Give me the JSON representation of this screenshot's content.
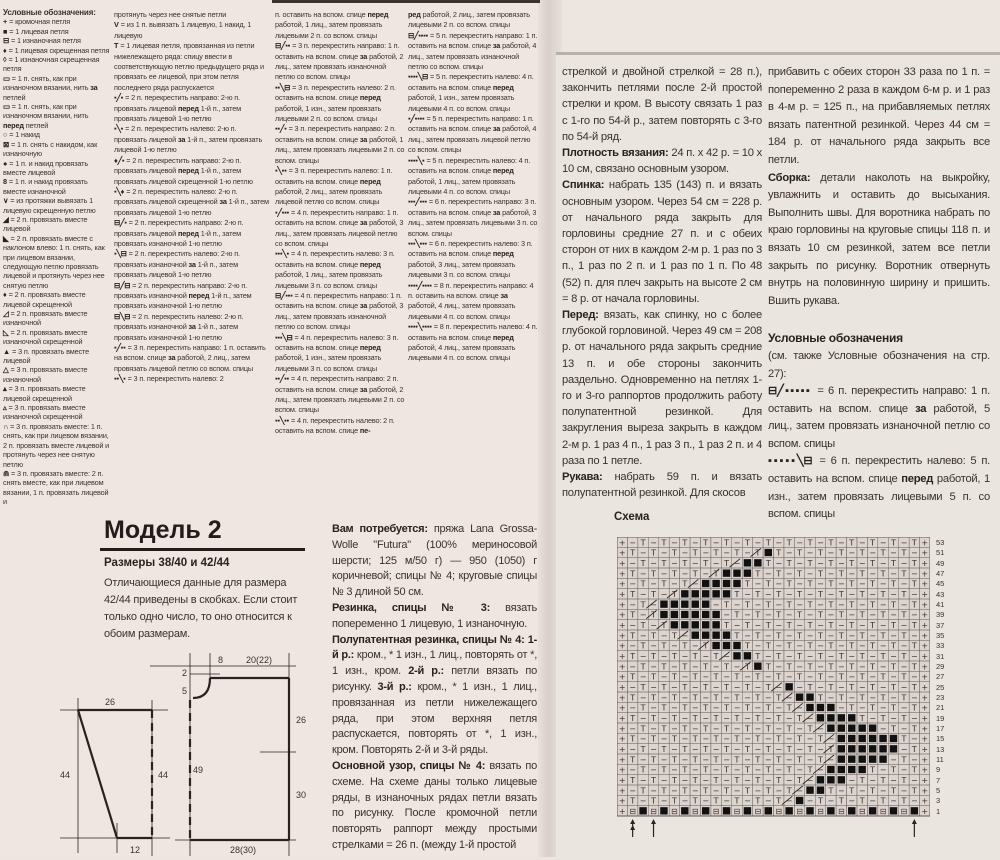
{
  "legend": {
    "title": "Условные обозначения:",
    "columns": [
      [
        {
          "sym": "+",
          "t": [
            "= кромочная петля"
          ]
        },
        {
          "sym": "■",
          "t": [
            "= 1 лицевая петля"
          ]
        },
        {
          "sym": "⊟",
          "t": [
            "= 1 изнаночная петля"
          ]
        },
        {
          "sym": "♦",
          "t": [
            "= 1 лицевая скрещенная петля"
          ]
        },
        {
          "sym": "◊",
          "t": [
            "= 1 изнаночная скрещенная петля"
          ]
        },
        {
          "sym": "▭",
          "t": [
            "= 1 п. снять, как при изнаночном вязании, нить ",
            "за",
            " петлей"
          ]
        },
        {
          "sym": "▭",
          "t": [
            "= 1 п. снять, как при изнаночном вязании, нить ",
            "перед",
            " петлей"
          ]
        },
        {
          "sym": "○",
          "t": [
            "= 1 накид"
          ]
        },
        {
          "sym": "⊠",
          "t": [
            "= 1 п. снять с накидом, как изнаночную"
          ]
        },
        {
          "sym": "●",
          "t": [
            "= 1 п. и накид провязать вместе лицевой"
          ]
        },
        {
          "sym": "8",
          "t": [
            "= 1 п. и накид провязать вместе изнаночной"
          ]
        },
        {
          "sym": "∨",
          "t": [
            "= из протяжки вывязать 1 лицевую скрещенную петлю"
          ]
        },
        {
          "sym": "◢",
          "t": [
            "= 2 п. провязать вместе лицевой"
          ]
        },
        {
          "sym": "◣",
          "t": [
            "= 2 п. провязать вместе с наклоном влево: 1 п. снять, как при лицевом вязании, следующую петлю провязать лицевой и протянуть через нее снятую петлю"
          ]
        },
        {
          "sym": "♦",
          "t": [
            "= 2 п. провязать вместе лицевой скрещенной"
          ]
        },
        {
          "sym": "◿",
          "t": [
            "= 2 п. провязать вместе изнаночной"
          ]
        },
        {
          "sym": "◺",
          "t": [
            "= 2 п. провязать вместе изнаночной скрещенной"
          ]
        },
        {
          "sym": "▲",
          "t": [
            "= 3 п. провязать вместе лицевой"
          ]
        },
        {
          "sym": "△",
          "t": [
            "= 3 п. провязать вместе изнаночной"
          ]
        },
        {
          "sym": "▴",
          "t": [
            "= 3 п. провязать вместе лицевой скрещенной"
          ]
        },
        {
          "sym": "▵",
          "t": [
            "= 3 п. провязать вместе изнаночной скрещенной"
          ]
        },
        {
          "sym": "∩",
          "t": [
            "= 3 п. провязать вместе: 1 п. снять, как при лицевом вязании, 2 п. провязать вместе лицевой и протянуть через нее снятую петлю"
          ]
        },
        {
          "sym": "⋒",
          "t": [
            "= 3 п. провязать вместе: 2 п. снять вместе, как при лицевом вязании, 1 п. провязать лицевой и"
          ]
        }
      ],
      [
        {
          "sym": "",
          "t": [
            "протянуть через нее снятые петли"
          ]
        },
        {
          "sym": "V",
          "t": [
            "= из 1 п. вывязать 1 лицевую, 1 накид, 1 лицевую"
          ]
        },
        {
          "sym": "T",
          "t": [
            "= 1 лицевая петля, провязанная из петли нижележащего ряда: спицу ввести в соответствующую петлю предыдущего ряда и провязать ее лицевой, при этом петля последнего ряда распускается"
          ]
        },
        {
          "sym": "▪╱▪",
          "t": [
            "= 2 п. перекрестить направо: 2-ю п. провязать лицевой ",
            "перед",
            " 1-й п., затем провязать лицевой 1-ю петлю"
          ]
        },
        {
          "sym": "▪╲▪",
          "t": [
            "= 2 п. перекрестить налево: 2-ю п. провязать лицевой ",
            "за",
            " 1-й п., затем провязать лицевой 1-ю петлю"
          ]
        },
        {
          "sym": "♦╱▪",
          "t": [
            "= 2 п. перекрестить направо: 2-ю п. провязать лицевой ",
            "перед",
            " 1-й п., затем провязать лицевой скрещенной 1-ю петлю"
          ]
        },
        {
          "sym": "▪╲♦",
          "t": [
            "= 2 п. перекрестить налево: 2-ю п. провязать лицевой скрещенной ",
            "за",
            " 1-й п., затем провязать лицевой 1-ю петлю"
          ]
        },
        {
          "sym": "⊟╱▪",
          "t": [
            "= 2 п. перекрестить направо: 2-ю п. провязать лицевой ",
            "перед",
            " 1-й п., затем провязать изнаночной 1-ю петлю"
          ]
        },
        {
          "sym": "▪╲⊟",
          "t": [
            "= 2 п. перекрестить налево: 2-ю п. провязать изнаночной ",
            "за",
            " 1-й п., затем провязать лицевой 1-ю петлю"
          ]
        },
        {
          "sym": "⊟╱⊟",
          "t": [
            "= 2 п. перекрестить направо: 2-ю п. провязать изнаночной ",
            "перед",
            " 1-й п., затем провязать изнаночной 1-ю петлю"
          ]
        },
        {
          "sym": "⊟╲⊟",
          "t": [
            "= 2 п. перекрестить налево: 2-ю п. провязать изнаночной ",
            "за",
            " 1-й п., затем провязать изнаночной 1-ю петлю"
          ]
        },
        {
          "sym": "▪╱▪▪",
          "t": [
            "= 3 п. перекрестить направо: 1 п. оставить на вспом. спице ",
            "за",
            " работой, 2 лиц., затем провязать лицевой петлю со вспом. спицы"
          ]
        },
        {
          "sym": "▪▪╲▪",
          "t": [
            "= 3 п. перекрестить налево: 2"
          ]
        }
      ],
      [
        {
          "sym": "",
          "t": [
            "п. оставить на вспом. спице ",
            "перед",
            " работой, 1 лиц., затем провязать лицевыми 2 п. со вспом. спицы"
          ]
        },
        {
          "sym": "⊟╱▪▪",
          "t": [
            "= 3 п. перекрестить направо: 1 п. оставить на вспом. спице ",
            "за",
            " работой, 2 лиц., затем провязать изнаночной петлю со вспом. спицы"
          ]
        },
        {
          "sym": "▪▪╲⊟",
          "t": [
            "= 3 п. перекрестить налево: 2 п. оставить на вспом. спице ",
            "перед",
            " работой, 1 изн., затем провязать лицевыми 2 п. со вспом. спицы"
          ]
        },
        {
          "sym": "▪▪╱▪",
          "t": [
            "= 3 п. перекрестить направо: 2 п. оставить на вспом. спице ",
            "за",
            " работой, 1 лиц., затем провязать лицевыми 2 п. со вспом. спицы"
          ]
        },
        {
          "sym": "▪╲▪▪",
          "t": [
            "= 3 п. перекрестить налево: 1 п. оставить на вспом. спице ",
            "перед",
            " работой, 2 лиц., затем провязать лицевой петлю со вспом. спицы"
          ]
        },
        {
          "sym": "▪╱▪▪▪",
          "t": [
            "= 4 п. перекрестить направо: 1 п. оставить на вспом. спице ",
            "за",
            " работой, 3 лиц., затем провязать лицевой петлю со вспом. спицы"
          ]
        },
        {
          "sym": "▪▪▪╲▪",
          "t": [
            "= 4 п. перекрестить налево: 3 п. оставить на вспом. спице ",
            "перед",
            " работой, 1 лиц., затем провязать лицевыми 3 п. со вспом. спицы"
          ]
        },
        {
          "sym": "⊟╱▪▪▪",
          "t": [
            "= 4 п. перекрестить направо: 1 п. оставить на вспом. спице ",
            "за",
            " работой, 3 лиц., затем провязать изнаночной петлю со вспом. спицы"
          ]
        },
        {
          "sym": "▪▪▪╲⊟",
          "t": [
            "= 4 п. перекрестить налево: 3 п. оставить на вспом. спице ",
            "перед",
            " работой, 1 изн., затем провязать лицевыми 3 п. со вспом. спицы"
          ]
        },
        {
          "sym": "▪▪╱▪▪",
          "t": [
            "= 4 п. перекрестить направо: 2 п. оставить на вспом. спице ",
            "за",
            " работой, 2 лиц., затем провязать лицевыми 2 п. со вспом. спицы"
          ]
        },
        {
          "sym": "▪▪╲▪▪",
          "t": [
            "= 4 п. перекрестить налево: 2 п. оставить на вспом. спице ",
            "пе-"
          ]
        }
      ],
      [
        {
          "sym": "",
          "t": [
            "",
            "ред",
            " работой, 2 лиц., затем провязать лицевыми 2 п. со вспом. спицы"
          ]
        },
        {
          "sym": "⊟╱▪▪▪▪",
          "t": [
            "= 5 п. перекрестить направо: 1 п. оставить на вспом. спице ",
            "за",
            " работой, 4 лиц., затем провязать изнаночной петлю со вспом. спицы"
          ]
        },
        {
          "sym": "▪▪▪▪╲⊟",
          "t": [
            "= 5 п. перекрестить налево: 4 п. оставить на вспом. спице ",
            "перед",
            " работой, 1 изн., затем провязать лицевыми 4 п. со вспом. спицы"
          ]
        },
        {
          "sym": "▪╱▪▪▪▪",
          "t": [
            "= 5 п. перекрестить направо: 1 п. оставить на вспом. спице ",
            "за",
            " работой, 4 лиц., затем провязать лицевой петлю со вспом. спицы"
          ]
        },
        {
          "sym": "▪▪▪▪╲▪",
          "t": [
            "= 5 п. перекрестить налево: 4 п. оставить на вспом. спице ",
            "перед",
            " работой, 1 лиц., затем провязать лицевыми 4 п. со вспом. спицы"
          ]
        },
        {
          "sym": "▪▪▪╱▪▪▪",
          "t": [
            "= 6 п. перекрестить направо: 3 п. оставить на вспом. спице ",
            "за",
            " работой, 3 лиц., затем провязать лицевыми 3 п. со вспом. спицы"
          ]
        },
        {
          "sym": "▪▪▪╲▪▪▪",
          "t": [
            "= 6 п. перекрестить налево: 3 п. оставить на вспом. спице ",
            "перед",
            " работой, 3 лиц., затем провязать лицевыми 3 п. со вспом. спицы"
          ]
        },
        {
          "sym": "▪▪▪▪╱▪▪▪▪",
          "t": [
            "= 8 п. перекрестить направо: 4 п. оставить на вспом. спице ",
            "за",
            " работой, 4 лиц., затем провязать лицевыми 4 п. со вспом. спицы"
          ]
        },
        {
          "sym": "▪▪▪▪╲▪▪▪▪",
          "t": [
            "= 8 п. перекрестить налево: 4 п. оставить на вспом. спице ",
            "перед",
            " работой, 4 лиц., затем провязать лицевыми 4 п. со вспом. спицы"
          ]
        }
      ]
    ]
  },
  "model": {
    "title": "Модель 2",
    "sizes": "Размеры 38/40 и 42/44",
    "sizes_note": "Отличающиеся данные для размера 42/44 приведены в скобках. Если стоит только одно число, то оно относится к обоим размерам."
  },
  "instructions_mid": [
    {
      "t": [
        "",
        "Вам потребуется:",
        " пряжа Lana Grossa-Wolle \"Futura\" (100% мериносовой шерсти; 125 м/50 г) — 950 (1050) г коричневой; спицы № 4; круговые спицы № 3 длиной 50 см."
      ]
    },
    {
      "t": [
        "",
        "Резинка, спицы № 3:",
        " вязать попеременно 1 лицевую, 1 изнаночную."
      ]
    },
    {
      "t": [
        "",
        "Полупатентная резинка, спицы № 4: 1-й р.:",
        " кром., * 1 изн., 1 лиц., повторять от *, 1 изн., кром. ",
        "2-й р.:",
        " петли вязать по рисунку. ",
        "3-й р.:",
        " кром., * 1 изн., 1 лиц., провязанная из петли нижележащего ряда, при этом верхняя петля распускается, повторять от *, 1 изн., кром. Повторять 2-й и 3-й ряды."
      ]
    },
    {
      "t": [
        "",
        "Основной узор, спицы № 4:",
        " вязать по схеме. На схеме даны только лицевые ряды, в изнаночных рядах петли вязать по рисунку. После кромочной петли повторять раппорт между простыми стрелками = 26 п. (между 1-й простой"
      ]
    }
  ],
  "instructions_right_a": [
    {
      "t": [
        "стрелкой и двойной стрелкой = 28 п.), закончить петлями после 2-й простой стрелки и кром. В высоту связать 1 раз с 1-го по 54-й р., затем повторять с 3-го по 54-й ряд."
      ]
    },
    {
      "t": [
        "",
        "Плотность вязания:",
        " 24 п. х 42 р. = 10 х 10 см, связано основным узором."
      ]
    },
    {
      "t": [
        "",
        "Спинка:",
        " набрать 135 (143) п. и вязать основным узором. Через 54 см = 228 р. от начального ряда закрыть для горловины средние 27 п. и с обеих сторон от них в каждом 2-м р. 1 раз по 3 п., 1 раз по 2 п. и 1 раз по 1 п. По 48 (52) п. для плеч закрыть на высоте 2 см = 8 р. от начала горловины."
      ]
    },
    {
      "t": [
        "",
        "Перед:",
        " вязать, как спинку, но с более глубокой горловиной. Через 49 см = 208 р. от начального ряда закрыть средние 13 п. и обе стороны закончить раздельно. Одновременно на петлях 1-го и 3-го раппортов продолжить работу полупатентной резинкой. Для закругления выреза закрыть в каждом 2-м р. 1 раз 4 п., 1 раз 3 п., 1 раз 2 п. и 4 раза по 1 петле."
      ]
    },
    {
      "t": [
        "",
        "Рукава:",
        " набрать 59 п. и вязать полупатентной резинкой. Для скосов"
      ]
    }
  ],
  "instructions_right_b": [
    {
      "t": [
        "прибавить с обеих сторон 33 раза по 1 п. = попеременно 2 раза в каждом 6-м р. и 1 раз в 4-м р. = 125 п., на прибавляемых петлях вязать патентной резинкой. Через 44 см = 184 р. от начального ряда закрыть все петли."
      ]
    },
    {
      "t": [
        "",
        "Сборка:",
        " детали наколоть на выкройку, увлажнить и оставить до высыхания. Выполнить швы. Для воротника набрать по краю горловины на круговые спицы 118 п. и вязать 10 см резинкой, затем все петли закрыть по рисунку. Воротник отвернуть внутрь на половинную ширину и пришить. Вшить рукава."
      ]
    }
  ],
  "legend_right": {
    "title": "Условные обозначения",
    "note": "(см. также Условные обозначения на стр. 27):",
    "entries": [
      {
        "sym": "⊟╱▪▪▪▪▪",
        "t": [
          " = 6 п. перекрестить направо: 1 п. оставить на вспом. спице ",
          "за",
          " работой, 5 лиц., затем провязать изнаночной петлю со вспом. спицы"
        ]
      },
      {
        "sym": "▪▪▪▪▪╲⊟",
        "t": [
          " = 6 п. перекрестить налево: 5 п. оставить на вспом. спице ",
          "перед",
          " работой, 1 изн., затем провязать лицевыми 5 п. со вспом. спицы"
        ]
      }
    ]
  },
  "schema": {
    "title": "Схема",
    "columns": 30,
    "row_labels": [
      "53",
      "51",
      "49",
      "47",
      "45",
      "43",
      "41",
      "39",
      "37",
      "35",
      "33",
      "31",
      "29",
      "27",
      "25",
      "23",
      "21",
      "19",
      "17",
      "15",
      "13",
      "11",
      "9",
      "7",
      "5",
      "3",
      "1"
    ],
    "filled_cells": {
      "51": [
        14,
        14
      ],
      "49": [
        12,
        13
      ],
      "47": [
        10,
        12
      ],
      "45": [
        8,
        11
      ],
      "43": [
        6,
        10
      ],
      "41": [
        4,
        8
      ],
      "39": [
        4,
        9
      ],
      "37": [
        5,
        9
      ],
      "35": [
        7,
        10
      ],
      "33": [
        9,
        11
      ],
      "31": [
        11,
        12
      ],
      "29": [
        13,
        13
      ],
      "25": [
        16,
        16
      ],
      "23": [
        17,
        18
      ],
      "21": [
        18,
        20
      ],
      "19": [
        19,
        22
      ],
      "17": [
        20,
        24
      ],
      "15": [
        21,
        26
      ],
      "13": [
        21,
        26
      ],
      "11": [
        21,
        25
      ],
      "9": [
        20,
        23
      ],
      "7": [
        19,
        21
      ],
      "5": [
        18,
        19
      ],
      "3": [
        17,
        17
      ]
    },
    "row1_filled": "every second stitch",
    "arrows": [
      "double-arrow",
      "arrow",
      "arrow"
    ]
  },
  "diagrams": {
    "sleeve": {
      "top": "26",
      "left": "44",
      "right": "44",
      "bottom": "12"
    },
    "body": {
      "neck_width": "8",
      "shoulder": "20(22)",
      "back_neck": "2",
      "front_neck": "5",
      "upper": "26",
      "front_height": "49",
      "lower": "30",
      "bottom": "28(30)"
    }
  },
  "colors": {
    "paper": "#ece5e0",
    "ink": "#3b302c",
    "chart_fill": "#111111"
  }
}
